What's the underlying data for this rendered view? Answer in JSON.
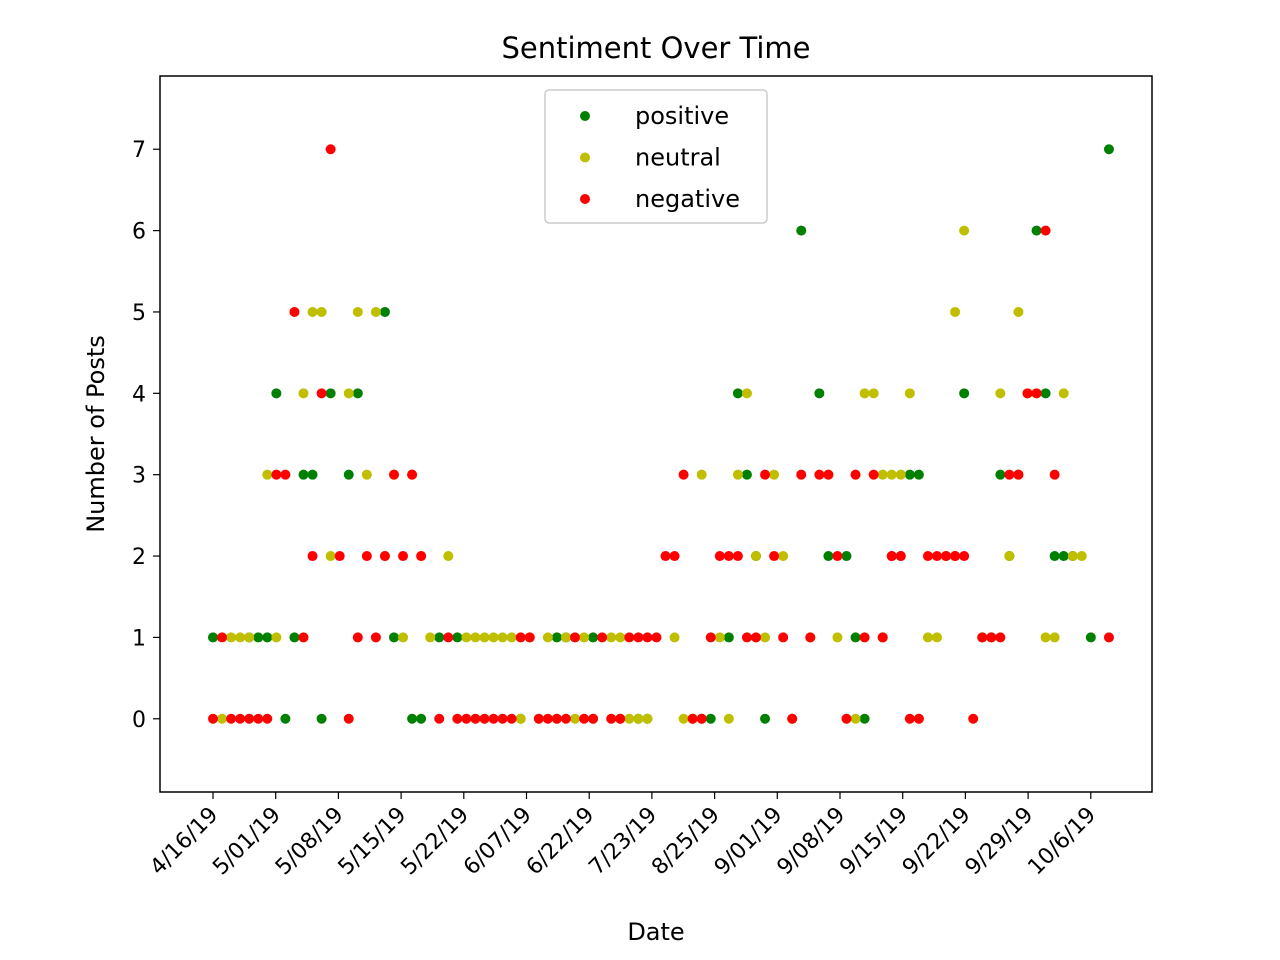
{
  "chart_data": {
    "type": "scatter",
    "title": "Sentiment Over Time",
    "xlabel": "Date",
    "ylabel": "Number of Posts",
    "x_tick_labels": [
      "4/16/19",
      "5/01/19",
      "5/08/19",
      "5/15/19",
      "5/22/19",
      "6/07/19",
      "6/22/19",
      "7/23/19",
      "8/25/19",
      "9/01/19",
      "9/08/19",
      "9/15/19",
      "9/22/19",
      "9/29/19",
      "10/6/19"
    ],
    "y_ticks": [
      0,
      1,
      2,
      3,
      4,
      5,
      6,
      7
    ],
    "ylim": [
      -0.9,
      7.9
    ],
    "legend": {
      "placement": "upper-center"
    },
    "series": [
      {
        "name": "positive",
        "color": "#008000",
        "points": [
          [
            0,
            1
          ],
          [
            4,
            1
          ],
          [
            5,
            1
          ],
          [
            6,
            1
          ],
          [
            7,
            4
          ],
          [
            8,
            0
          ],
          [
            9,
            1
          ],
          [
            10,
            3
          ],
          [
            11,
            3
          ],
          [
            12,
            0
          ],
          [
            13,
            4
          ],
          [
            15,
            3
          ],
          [
            16,
            4
          ],
          [
            19,
            5
          ],
          [
            20,
            1
          ],
          [
            22,
            0
          ],
          [
            23,
            0
          ],
          [
            25,
            1
          ],
          [
            27,
            1
          ],
          [
            34,
            0
          ],
          [
            38,
            1
          ],
          [
            39,
            1
          ],
          [
            42,
            1
          ],
          [
            45,
            0
          ],
          [
            47,
            0
          ],
          [
            48,
            0
          ],
          [
            53,
            0
          ],
          [
            54,
            0
          ],
          [
            55,
            0
          ],
          [
            57,
            1
          ],
          [
            58,
            4
          ],
          [
            59,
            3
          ],
          [
            60,
            2
          ],
          [
            61,
            0
          ],
          [
            64,
            0
          ],
          [
            65,
            6
          ],
          [
            67,
            4
          ],
          [
            68,
            2
          ],
          [
            70,
            2
          ],
          [
            71,
            1
          ],
          [
            72,
            0
          ],
          [
            74,
            1
          ],
          [
            75,
            2
          ],
          [
            76,
            2
          ],
          [
            77,
            3
          ],
          [
            78,
            3
          ],
          [
            81,
            2
          ],
          [
            82,
            2
          ],
          [
            83,
            4
          ],
          [
            85,
            1
          ],
          [
            86,
            1
          ],
          [
            87,
            3
          ],
          [
            88,
            2
          ],
          [
            89,
            3
          ],
          [
            91,
            6
          ],
          [
            92,
            4
          ],
          [
            93,
            2
          ],
          [
            94,
            2
          ],
          [
            95,
            2
          ],
          [
            97,
            1
          ],
          [
            99,
            7
          ]
        ]
      },
      {
        "name": "neutral",
        "color": "#bfbf00",
        "points": [
          [
            1,
            0
          ],
          [
            2,
            1
          ],
          [
            3,
            1
          ],
          [
            4,
            1
          ],
          [
            6,
            3
          ],
          [
            7,
            1
          ],
          [
            10,
            4
          ],
          [
            11,
            5
          ],
          [
            12,
            5
          ],
          [
            13,
            2
          ],
          [
            15,
            4
          ],
          [
            16,
            5
          ],
          [
            17,
            3
          ],
          [
            18,
            5
          ],
          [
            19,
            2
          ],
          [
            20,
            3
          ],
          [
            21,
            1
          ],
          [
            22,
            3
          ],
          [
            23,
            2
          ],
          [
            24,
            1
          ],
          [
            26,
            2
          ],
          [
            28,
            1
          ],
          [
            29,
            1
          ],
          [
            30,
            1
          ],
          [
            31,
            1
          ],
          [
            32,
            1
          ],
          [
            33,
            1
          ],
          [
            34,
            0
          ],
          [
            35,
            1
          ],
          [
            36,
            0
          ],
          [
            37,
            1
          ],
          [
            38,
            0
          ],
          [
            39,
            1
          ],
          [
            40,
            0
          ],
          [
            41,
            1
          ],
          [
            42,
            0
          ],
          [
            44,
            1
          ],
          [
            45,
            1
          ],
          [
            46,
            0
          ],
          [
            47,
            0
          ],
          [
            48,
            0
          ],
          [
            51,
            1
          ],
          [
            52,
            0
          ],
          [
            53,
            0
          ],
          [
            54,
            3
          ],
          [
            56,
            1
          ],
          [
            57,
            0
          ],
          [
            58,
            3
          ],
          [
            59,
            4
          ],
          [
            60,
            2
          ],
          [
            61,
            1
          ],
          [
            62,
            3
          ],
          [
            63,
            2
          ],
          [
            66,
            1
          ],
          [
            68,
            3
          ],
          [
            69,
            1
          ],
          [
            70,
            0
          ],
          [
            71,
            0
          ],
          [
            72,
            4
          ],
          [
            73,
            4
          ],
          [
            74,
            3
          ],
          [
            75,
            3
          ],
          [
            76,
            3
          ],
          [
            77,
            4
          ],
          [
            78,
            0
          ],
          [
            79,
            1
          ],
          [
            80,
            1
          ],
          [
            82,
            5
          ],
          [
            83,
            6
          ],
          [
            87,
            4
          ],
          [
            88,
            2
          ],
          [
            89,
            5
          ],
          [
            90,
            4
          ],
          [
            91,
            4
          ],
          [
            92,
            1
          ],
          [
            93,
            1
          ],
          [
            94,
            4
          ],
          [
            95,
            2
          ],
          [
            96,
            2
          ]
        ]
      },
      {
        "name": "negative",
        "color": "#ff0000",
        "points": [
          [
            0,
            0
          ],
          [
            1,
            1
          ],
          [
            2,
            0
          ],
          [
            3,
            0
          ],
          [
            4,
            0
          ],
          [
            5,
            0
          ],
          [
            6,
            0
          ],
          [
            7,
            3
          ],
          [
            8,
            3
          ],
          [
            9,
            5
          ],
          [
            10,
            1
          ],
          [
            11,
            2
          ],
          [
            12,
            4
          ],
          [
            13,
            7
          ],
          [
            14,
            2
          ],
          [
            15,
            0
          ],
          [
            16,
            1
          ],
          [
            17,
            2
          ],
          [
            18,
            1
          ],
          [
            19,
            2
          ],
          [
            20,
            3
          ],
          [
            21,
            2
          ],
          [
            22,
            3
          ],
          [
            23,
            2
          ],
          [
            25,
            0
          ],
          [
            26,
            1
          ],
          [
            27,
            0
          ],
          [
            28,
            0
          ],
          [
            29,
            0
          ],
          [
            30,
            0
          ],
          [
            31,
            0
          ],
          [
            32,
            0
          ],
          [
            33,
            0
          ],
          [
            34,
            1
          ],
          [
            35,
            1
          ],
          [
            36,
            0
          ],
          [
            37,
            0
          ],
          [
            38,
            0
          ],
          [
            39,
            0
          ],
          [
            40,
            1
          ],
          [
            41,
            0
          ],
          [
            42,
            0
          ],
          [
            43,
            1
          ],
          [
            44,
            0
          ],
          [
            45,
            0
          ],
          [
            46,
            1
          ],
          [
            47,
            1
          ],
          [
            48,
            1
          ],
          [
            49,
            1
          ],
          [
            50,
            2
          ],
          [
            51,
            2
          ],
          [
            52,
            3
          ],
          [
            53,
            0
          ],
          [
            54,
            0
          ],
          [
            55,
            1
          ],
          [
            56,
            2
          ],
          [
            57,
            2
          ],
          [
            58,
            2
          ],
          [
            59,
            1
          ],
          [
            60,
            1
          ],
          [
            61,
            3
          ],
          [
            62,
            2
          ],
          [
            63,
            1
          ],
          [
            64,
            0
          ],
          [
            65,
            3
          ],
          [
            66,
            1
          ],
          [
            67,
            3
          ],
          [
            68,
            3
          ],
          [
            69,
            2
          ],
          [
            70,
            0
          ],
          [
            71,
            3
          ],
          [
            72,
            1
          ],
          [
            73,
            3
          ],
          [
            74,
            1
          ],
          [
            75,
            2
          ],
          [
            76,
            2
          ],
          [
            77,
            0
          ],
          [
            78,
            0
          ],
          [
            79,
            2
          ],
          [
            80,
            2
          ],
          [
            81,
            2
          ],
          [
            82,
            2
          ],
          [
            83,
            2
          ],
          [
            84,
            0
          ],
          [
            85,
            1
          ],
          [
            86,
            1
          ],
          [
            87,
            1
          ],
          [
            88,
            3
          ],
          [
            89,
            3
          ],
          [
            90,
            4
          ],
          [
            91,
            4
          ],
          [
            92,
            6
          ],
          [
            93,
            3
          ],
          [
            99,
            1
          ]
        ]
      }
    ]
  }
}
